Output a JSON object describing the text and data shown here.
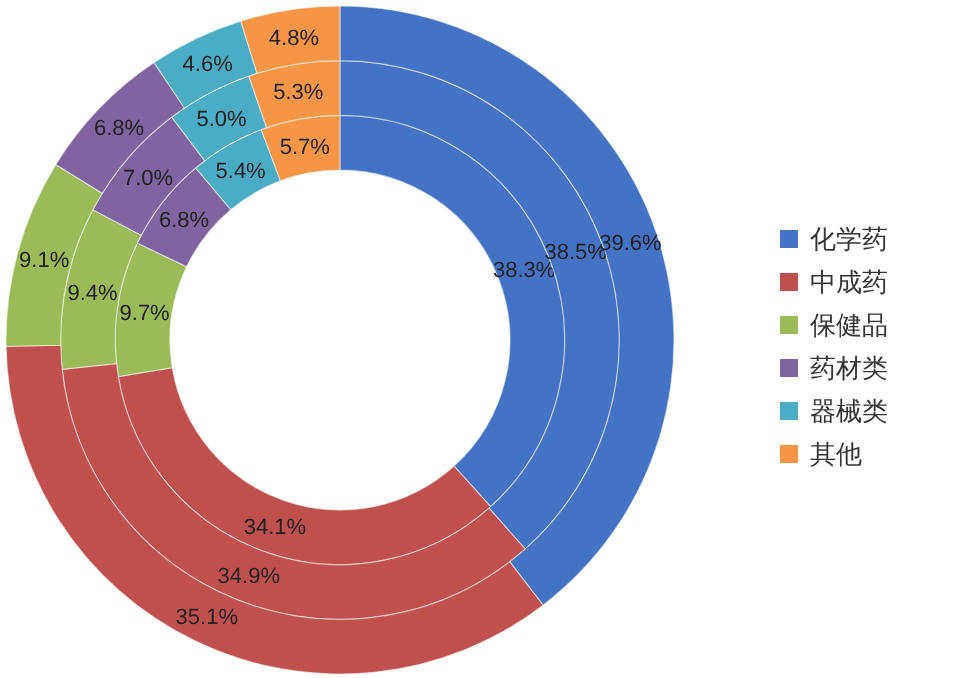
{
  "chart_data": {
    "type": "donut",
    "categories": [
      "化学药",
      "中成药",
      "保健品",
      "药材类",
      "器械类",
      "其他"
    ],
    "colors": [
      "#4472c4",
      "#c0504d",
      "#9bbb59",
      "#8064a2",
      "#4bacc6",
      "#f79646"
    ],
    "series": [
      {
        "values": [
          38.3,
          34.1,
          9.7,
          6.8,
          5.4,
          5.7
        ],
        "value_labels": [
          "38.3%",
          "34.1%",
          "9.7%",
          "6.8%",
          "5.4%",
          "5.7%"
        ]
      },
      {
        "values": [
          38.5,
          34.9,
          9.4,
          7.0,
          5.0,
          5.3
        ],
        "value_labels": [
          "38.5%",
          "34.9%",
          "9.4%",
          "7.0%",
          "5.0%",
          "5.3%"
        ]
      },
      {
        "values": [
          39.6,
          35.1,
          9.1,
          6.8,
          4.6,
          4.8
        ],
        "value_labels": [
          "39.6%",
          "35.1%",
          "9.1%",
          "6.8%",
          "4.6%",
          "4.8%"
        ]
      }
    ],
    "legend": "right"
  }
}
